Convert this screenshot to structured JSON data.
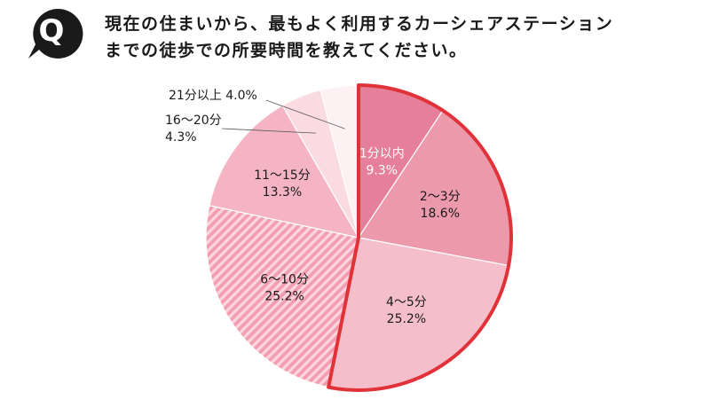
{
  "question": {
    "badge": "Q",
    "lines": [
      "現在の住まいから、最もよく利用するカーシェアステーション",
      "までの徒歩での所要時間を教えてください。"
    ]
  },
  "colors": {
    "highlight_border": "#e03238",
    "slices": [
      "#e67f99",
      "#ec99ac",
      "#f4bfca",
      "#f39db0",
      "#f5b4c3",
      "#fadbe2",
      "#fdf1f4"
    ]
  },
  "chart_data": {
    "type": "pie",
    "start_angle_deg": 0,
    "direction": "clockwise",
    "slices": [
      {
        "label": "1分以内",
        "value": 9.3,
        "display": "9.3%",
        "highlighted": true
      },
      {
        "label": "2〜3分",
        "value": 18.6,
        "display": "18.6%",
        "highlighted": true
      },
      {
        "label": "4〜5分",
        "value": 25.2,
        "display": "25.2%",
        "highlighted": true
      },
      {
        "label": "6〜10分",
        "value": 25.2,
        "display": "25.2%",
        "hatched": true
      },
      {
        "label": "11〜15分",
        "value": 13.3,
        "display": "13.3%"
      },
      {
        "label": "16〜20分",
        "value": 4.3,
        "display": "4.3%"
      },
      {
        "label": "21分以上",
        "value": 4.0,
        "display": "4.0%"
      }
    ]
  }
}
